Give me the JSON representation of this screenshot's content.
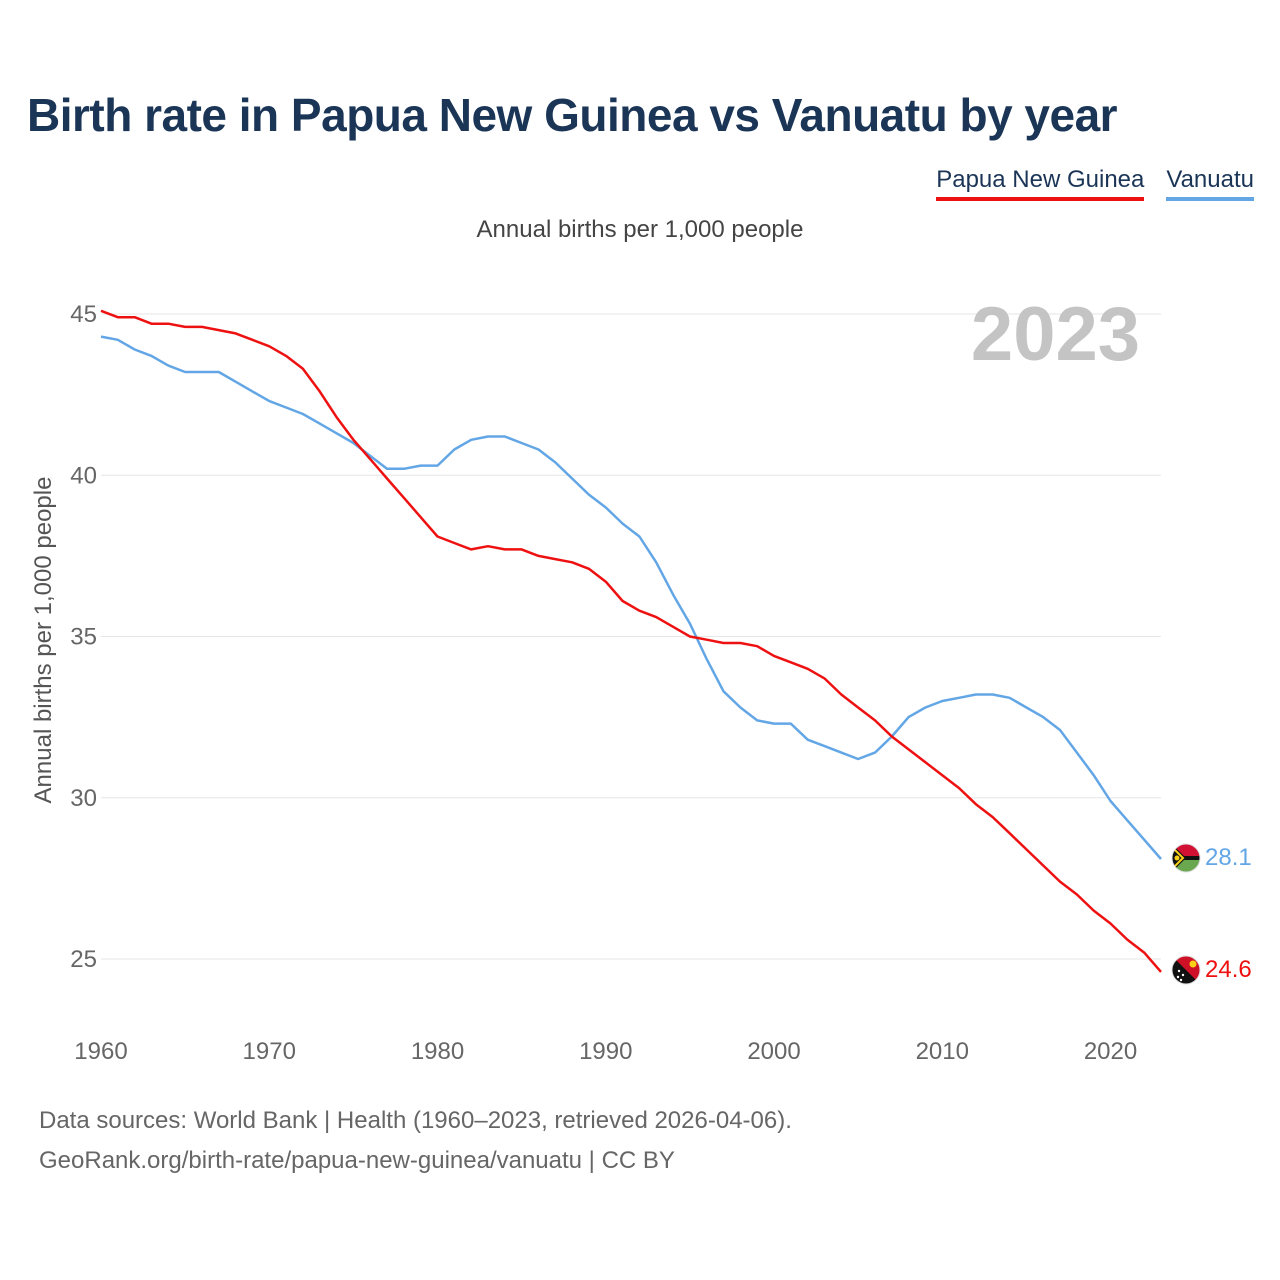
{
  "chart_data": {
    "type": "line",
    "title": "Birth rate in Papua New Guinea vs Vanuatu by year",
    "subtitle": "Annual births per 1,000 people",
    "ylabel": "Annual births per 1,000 people",
    "xlabel": "",
    "year_badge": "2023",
    "xlim": [
      1960,
      2023
    ],
    "ylim": [
      23.5,
      46.5
    ],
    "x_ticks": [
      1960,
      1970,
      1980,
      1990,
      2000,
      2010,
      2020
    ],
    "y_ticks": [
      25,
      30,
      35,
      40,
      45
    ],
    "grid": true,
    "legend_position": "top-right",
    "series": [
      {
        "name": "Papua New Guinea",
        "color": "#ee1111",
        "end_label": "24.6",
        "flag_icon": "papua-new-guinea-flag-icon",
        "x": [
          1960,
          1961,
          1962,
          1963,
          1964,
          1965,
          1966,
          1967,
          1968,
          1969,
          1970,
          1971,
          1972,
          1973,
          1974,
          1975,
          1976,
          1977,
          1978,
          1979,
          1980,
          1981,
          1982,
          1983,
          1984,
          1985,
          1986,
          1987,
          1988,
          1989,
          1990,
          1991,
          1992,
          1993,
          1994,
          1995,
          1996,
          1997,
          1998,
          1999,
          2000,
          2001,
          2002,
          2003,
          2004,
          2005,
          2006,
          2007,
          2008,
          2009,
          2010,
          2011,
          2012,
          2013,
          2014,
          2015,
          2016,
          2017,
          2018,
          2019,
          2020,
          2021,
          2022,
          2023
        ],
        "values": [
          45.1,
          44.9,
          44.9,
          44.7,
          44.7,
          44.6,
          44.6,
          44.5,
          44.4,
          44.2,
          44.0,
          43.7,
          43.3,
          42.6,
          41.8,
          41.1,
          40.5,
          39.9,
          39.3,
          38.7,
          38.1,
          37.9,
          37.7,
          37.8,
          37.7,
          37.7,
          37.5,
          37.4,
          37.3,
          37.1,
          36.7,
          36.1,
          35.8,
          35.6,
          35.3,
          35.0,
          34.9,
          34.8,
          34.8,
          34.7,
          34.4,
          34.2,
          34.0,
          33.7,
          33.2,
          32.8,
          32.4,
          31.9,
          31.5,
          31.1,
          30.7,
          30.3,
          29.8,
          29.4,
          28.9,
          28.4,
          27.9,
          27.4,
          27.0,
          26.5,
          26.1,
          25.6,
          25.2,
          24.6
        ]
      },
      {
        "name": "Vanuatu",
        "color": "#63a6e6",
        "end_label": "28.1",
        "flag_icon": "vanuatu-flag-icon",
        "x": [
          1960,
          1961,
          1962,
          1963,
          1964,
          1965,
          1966,
          1967,
          1968,
          1969,
          1970,
          1971,
          1972,
          1973,
          1974,
          1975,
          1976,
          1977,
          1978,
          1979,
          1980,
          1981,
          1982,
          1983,
          1984,
          1985,
          1986,
          1987,
          1988,
          1989,
          1990,
          1991,
          1992,
          1993,
          1994,
          1995,
          1996,
          1997,
          1998,
          1999,
          2000,
          2001,
          2002,
          2003,
          2004,
          2005,
          2006,
          2007,
          2008,
          2009,
          2010,
          2011,
          2012,
          2013,
          2014,
          2015,
          2016,
          2017,
          2018,
          2019,
          2020,
          2021,
          2022,
          2023
        ],
        "values": [
          44.3,
          44.2,
          43.9,
          43.7,
          43.4,
          43.2,
          43.2,
          43.2,
          42.9,
          42.6,
          42.3,
          42.1,
          41.9,
          41.6,
          41.3,
          41.0,
          40.6,
          40.2,
          40.2,
          40.3,
          40.3,
          40.8,
          41.1,
          41.2,
          41.2,
          41.0,
          40.8,
          40.4,
          39.9,
          39.4,
          39.0,
          38.5,
          38.1,
          37.3,
          36.3,
          35.4,
          34.3,
          33.3,
          32.8,
          32.4,
          32.3,
          32.3,
          31.8,
          31.6,
          31.4,
          31.2,
          31.4,
          31.9,
          32.5,
          32.8,
          33.0,
          33.1,
          33.2,
          33.2,
          33.1,
          32.8,
          32.5,
          32.1,
          31.4,
          30.7,
          29.9,
          29.3,
          28.7,
          28.1
        ]
      }
    ]
  },
  "footer": {
    "source": "Data sources: World Bank | Health (1960–2023, retrieved 2026-04-06).",
    "credit": "GeoRank.org/birth-rate/papua-new-guinea/vanuatu | CC BY"
  }
}
